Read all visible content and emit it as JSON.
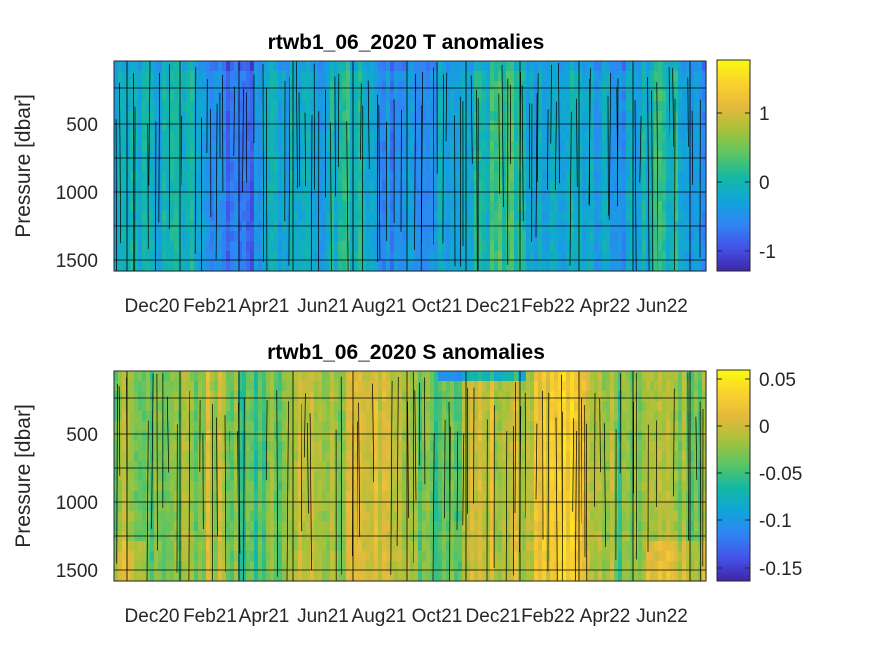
{
  "chart_data": [
    {
      "type": "heatmap",
      "title": "rtwb1_06_2020 T anomalies",
      "ylabel": "Pressure [dbar]",
      "y_reversed": true,
      "ylim": [
        0,
        1600
      ],
      "yticks": [
        500,
        1000,
        1500
      ],
      "ytick_labels": [
        "500",
        "1000",
        "1500"
      ],
      "xtick_labels": [
        "Dec20",
        "Feb21",
        "Apr21",
        "Jun21",
        "Aug21",
        "Oct21",
        "Dec21",
        "Feb22",
        "Apr22",
        "Jun22"
      ],
      "clim": [
        -1.3,
        1.75
      ],
      "colorbar_ticks": [
        1,
        0,
        -1
      ],
      "colorbar_tick_labels": [
        "1",
        "0",
        "-1"
      ],
      "colormap": "parula",
      "grid": true,
      "contours": true
    },
    {
      "type": "heatmap",
      "title": "rtwb1_06_2020 S anomalies",
      "ylabel": "Pressure [dbar]",
      "y_reversed": true,
      "ylim": [
        0,
        1600
      ],
      "yticks": [
        500,
        1000,
        1500
      ],
      "ytick_labels": [
        "500",
        "1000",
        "1500"
      ],
      "xtick_labels": [
        "Dec20",
        "Feb21",
        "Apr21",
        "Jun21",
        "Aug21",
        "Oct21",
        "Dec21",
        "Feb22",
        "Apr22",
        "Jun22"
      ],
      "clim": [
        -0.17,
        0.062
      ],
      "colorbar_ticks": [
        0.05,
        0,
        -0.05,
        -0.1,
        -0.15
      ],
      "colorbar_tick_labels": [
        "0.05",
        "0",
        "-0.05",
        "-0.1",
        "-0.15"
      ],
      "colormap": "parula",
      "grid": true,
      "contours": true
    }
  ],
  "colors": {
    "parula_stops": [
      "#3e26a8",
      "#4353e8",
      "#2f85f5",
      "#10a5d9",
      "#14b9a2",
      "#5cc563",
      "#a7c23a",
      "#e4b93c",
      "#fbd12e",
      "#f9fb0e"
    ]
  }
}
